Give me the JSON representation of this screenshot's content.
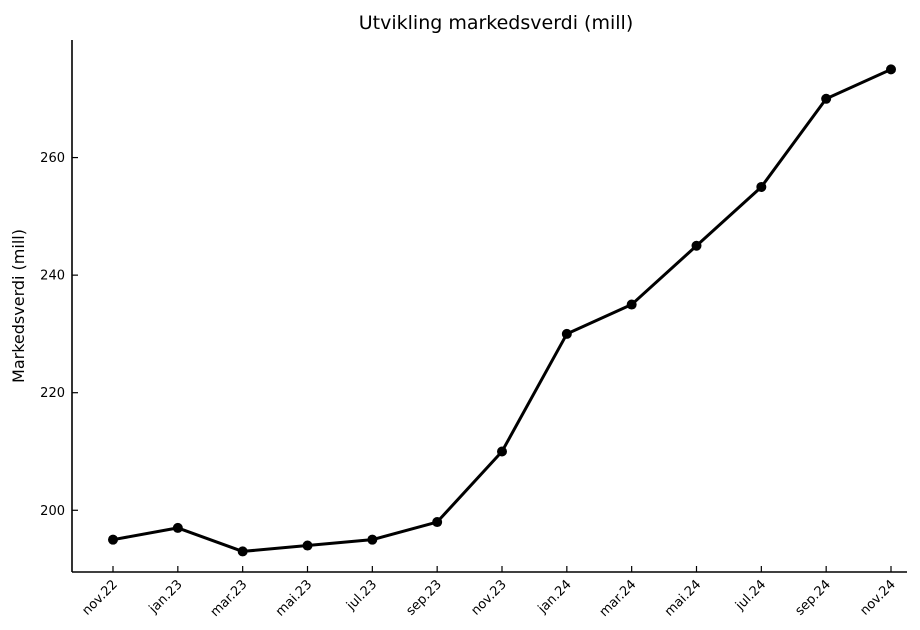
{
  "chart_data": {
    "type": "line",
    "title": "Utvikling markedsverdi (mill)",
    "xlabel": "",
    "ylabel": "Markedsverdi (mill)",
    "categories": [
      "nov.22",
      "jan.23",
      "mar.23",
      "mai.23",
      "jul.23",
      "sep.23",
      "nov.23",
      "jan.24",
      "mar.24",
      "mai.24",
      "jul.24",
      "sep.24",
      "nov.24"
    ],
    "series": [
      {
        "values": [
          195,
          197,
          193,
          194,
          195,
          198,
          210,
          230,
          235,
          245,
          255,
          270,
          275
        ]
      }
    ],
    "ylim": [
      189.5,
      280
    ],
    "yticks": [
      200,
      220,
      240,
      260
    ],
    "grid": false,
    "legend": "none",
    "colors": {
      "line": "#000000",
      "marker": "#000000"
    }
  }
}
